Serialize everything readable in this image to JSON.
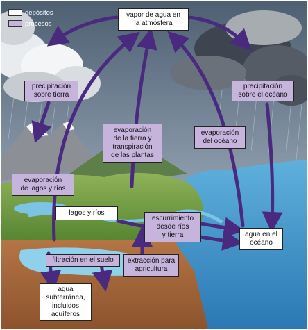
{
  "legend": {
    "deposits_label": "depósitos",
    "processes_label": "procesos",
    "deposits_color": "#ffffff",
    "processes_color": "#c6b4dd"
  },
  "colors": {
    "arrow": "#4a2a7f",
    "sky": "#6b7f95",
    "ocean": "#3d8fc4",
    "land": "#6f9a3e",
    "soil": "#a8673a"
  },
  "deposits": {
    "atmosphere": "vapor de agua en\nla atmósfera",
    "lakes": "lagos y ríos",
    "ocean": "agua en el\nocéano",
    "groundwater": "agua\nsubterránea,\nincluidos\nacuíferos"
  },
  "processes": {
    "precip_land": "precipitación\nsobre tierra",
    "precip_ocean": "precipitación\nsobre el océano",
    "evapotranspiration": "evaporación\nde la tierra y\ntranspiración\nde las plantas",
    "evap_ocean": "evaporación\ndel océano",
    "evap_lakes": "evaporación\nde lagos y ríos",
    "runoff": "escurrimiento\ndesde ríos\ny tierra",
    "infiltration": "filtración en el suelo",
    "extraction": "extracción para\nagricultura"
  }
}
